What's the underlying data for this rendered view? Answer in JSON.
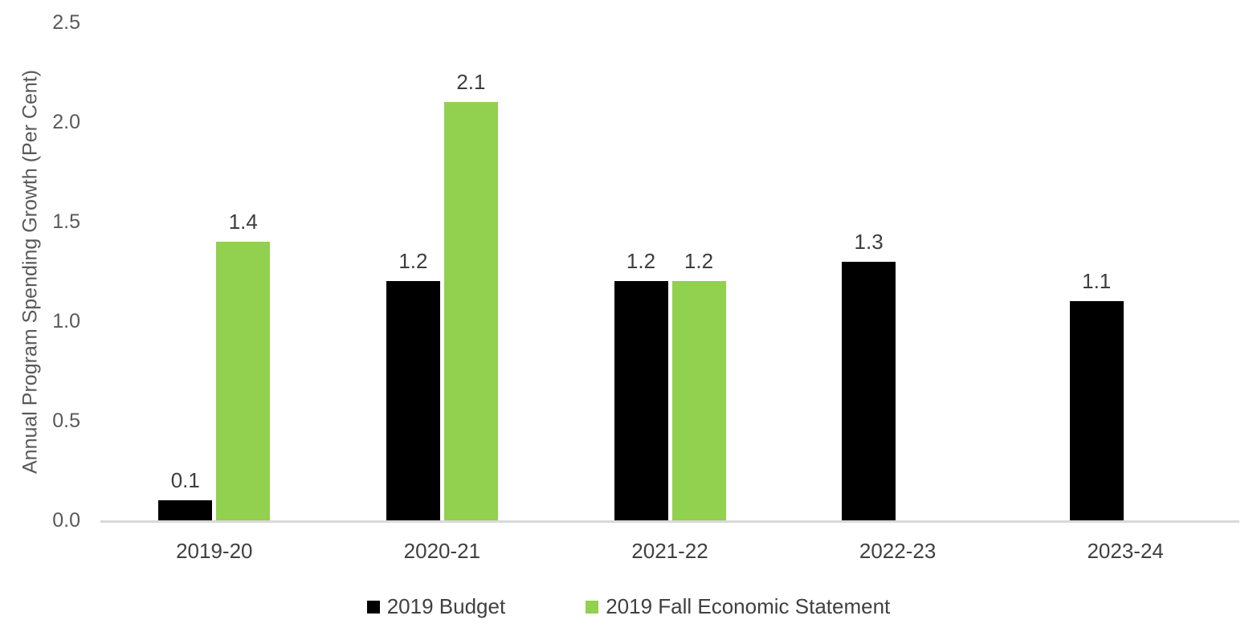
{
  "chart_data": {
    "type": "bar",
    "title": "",
    "xlabel": "",
    "ylabel": "Annual Program Spending Growth (Per Cent)",
    "categories": [
      "2019-20",
      "2020-21",
      "2021-22",
      "2022-23",
      "2023-24"
    ],
    "series": [
      {
        "name": "2019 Budget",
        "color": "#000000",
        "values": [
          0.1,
          1.2,
          1.2,
          1.3,
          1.1
        ],
        "data_labels": [
          "0.1",
          "1.2",
          "1.2",
          "1.3",
          "1.1"
        ]
      },
      {
        "name": "2019 Fall Economic Statement",
        "color": "#92D050",
        "values": [
          1.4,
          2.1,
          1.2,
          null,
          null
        ],
        "data_labels": [
          "1.4",
          "2.1",
          "1.2",
          null,
          null
        ]
      }
    ],
    "ylim": [
      0,
      2.5
    ],
    "y_ticks": [
      "2.5",
      "2.0",
      "1.5",
      "1.0",
      "0.5",
      "0.0"
    ],
    "y_tick_interval": 0.5,
    "grid": false,
    "legend_position": "bottom",
    "colors": {
      "axis_line": "#D9D9D9",
      "tick_text": "#595959",
      "label_text": "#404040"
    }
  }
}
